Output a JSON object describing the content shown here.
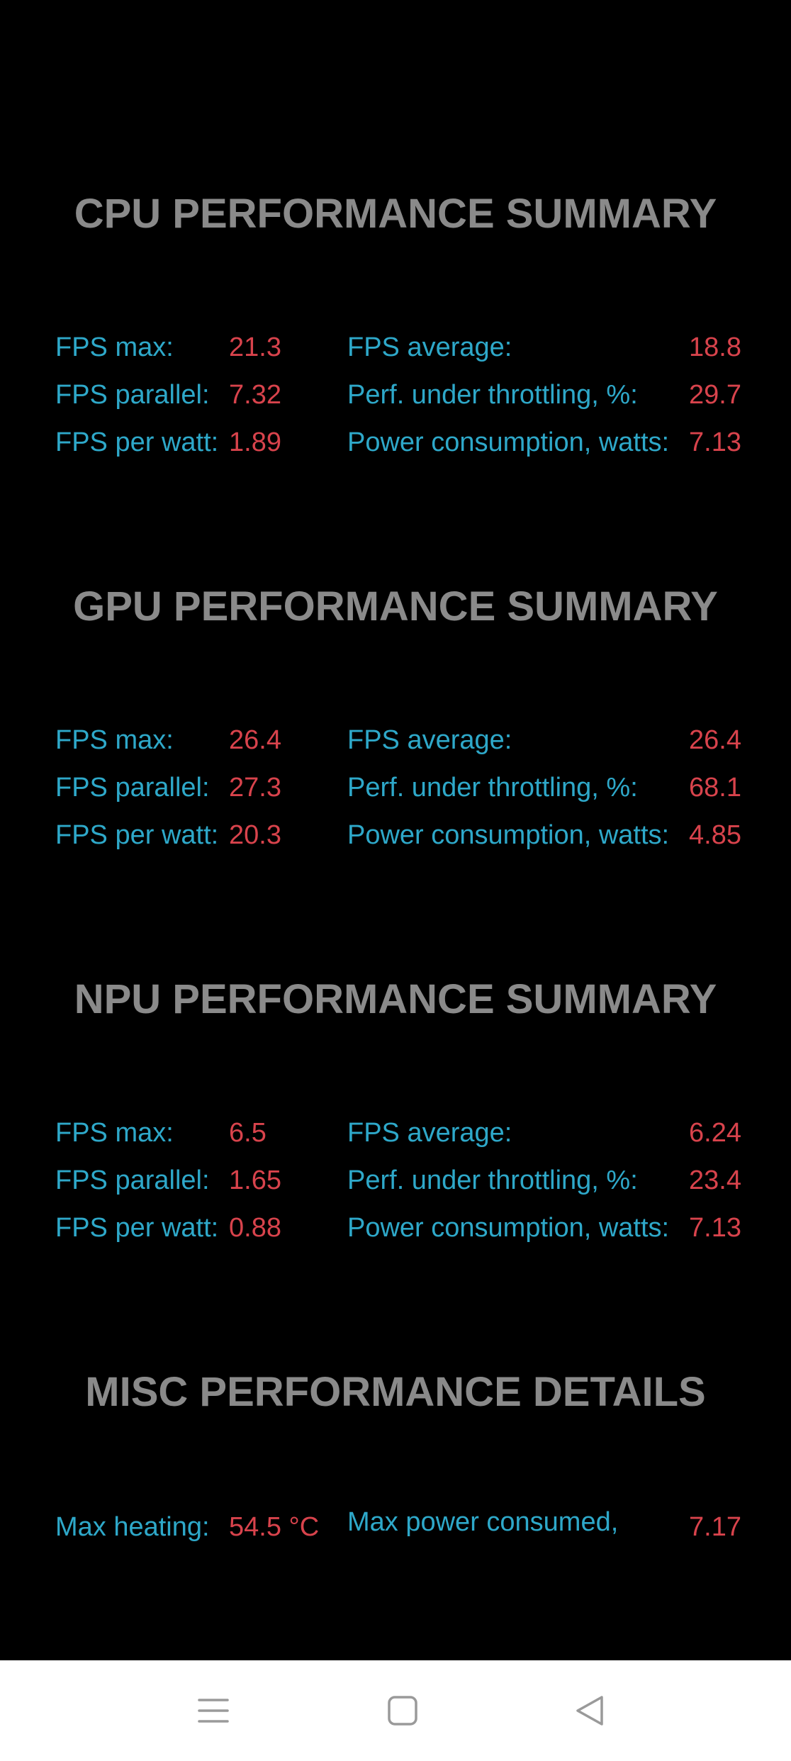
{
  "sections": {
    "cpu": {
      "title": "CPU PERFORMANCE SUMMARY",
      "rows": [
        {
          "label_left": "FPS max:",
          "value_left": "21.3",
          "label_right": "FPS average:",
          "value_right": "18.8"
        },
        {
          "label_left": "FPS parallel:",
          "value_left": "7.32",
          "label_right": "Perf. under throttling, %:",
          "value_right": "29.7"
        },
        {
          "label_left": "FPS per watt:",
          "value_left": "1.89",
          "label_right": "Power consumption, watts:",
          "value_right": "7.13"
        }
      ]
    },
    "gpu": {
      "title": "GPU PERFORMANCE SUMMARY",
      "rows": [
        {
          "label_left": "FPS max:",
          "value_left": "26.4",
          "label_right": "FPS average:",
          "value_right": "26.4"
        },
        {
          "label_left": "FPS parallel:",
          "value_left": "27.3",
          "label_right": "Perf. under throttling, %:",
          "value_right": "68.1"
        },
        {
          "label_left": "FPS per watt:",
          "value_left": "20.3",
          "label_right": "Power consumption, watts:",
          "value_right": "4.85"
        }
      ]
    },
    "npu": {
      "title": "NPU PERFORMANCE SUMMARY",
      "rows": [
        {
          "label_left": "FPS max:",
          "value_left": "6.5",
          "label_right": "FPS average:",
          "value_right": "6.24"
        },
        {
          "label_left": "FPS parallel:",
          "value_left": "1.65",
          "label_right": "Perf. under throttling, %:",
          "value_right": "23.4"
        },
        {
          "label_left": "FPS per watt:",
          "value_left": "0.88",
          "label_right": "Power consumption, watts:",
          "value_right": "7.13"
        }
      ]
    },
    "misc": {
      "title": "MISC PERFORMANCE DETAILS",
      "rows": [
        {
          "label_left": "Max heating:",
          "value_left": "54.5 °C",
          "label_right": "Max power consumed,",
          "value_right": "7.17"
        }
      ]
    }
  },
  "navbar": {
    "menu_icon": "menu-lines-icon",
    "home_icon": "square-home-icon",
    "back_icon": "triangle-back-icon"
  },
  "colors": {
    "background": "#000000",
    "title": "#8a8a8a",
    "label": "#2ea8c9",
    "value": "#d8434c",
    "navbar": "#ffffff"
  }
}
